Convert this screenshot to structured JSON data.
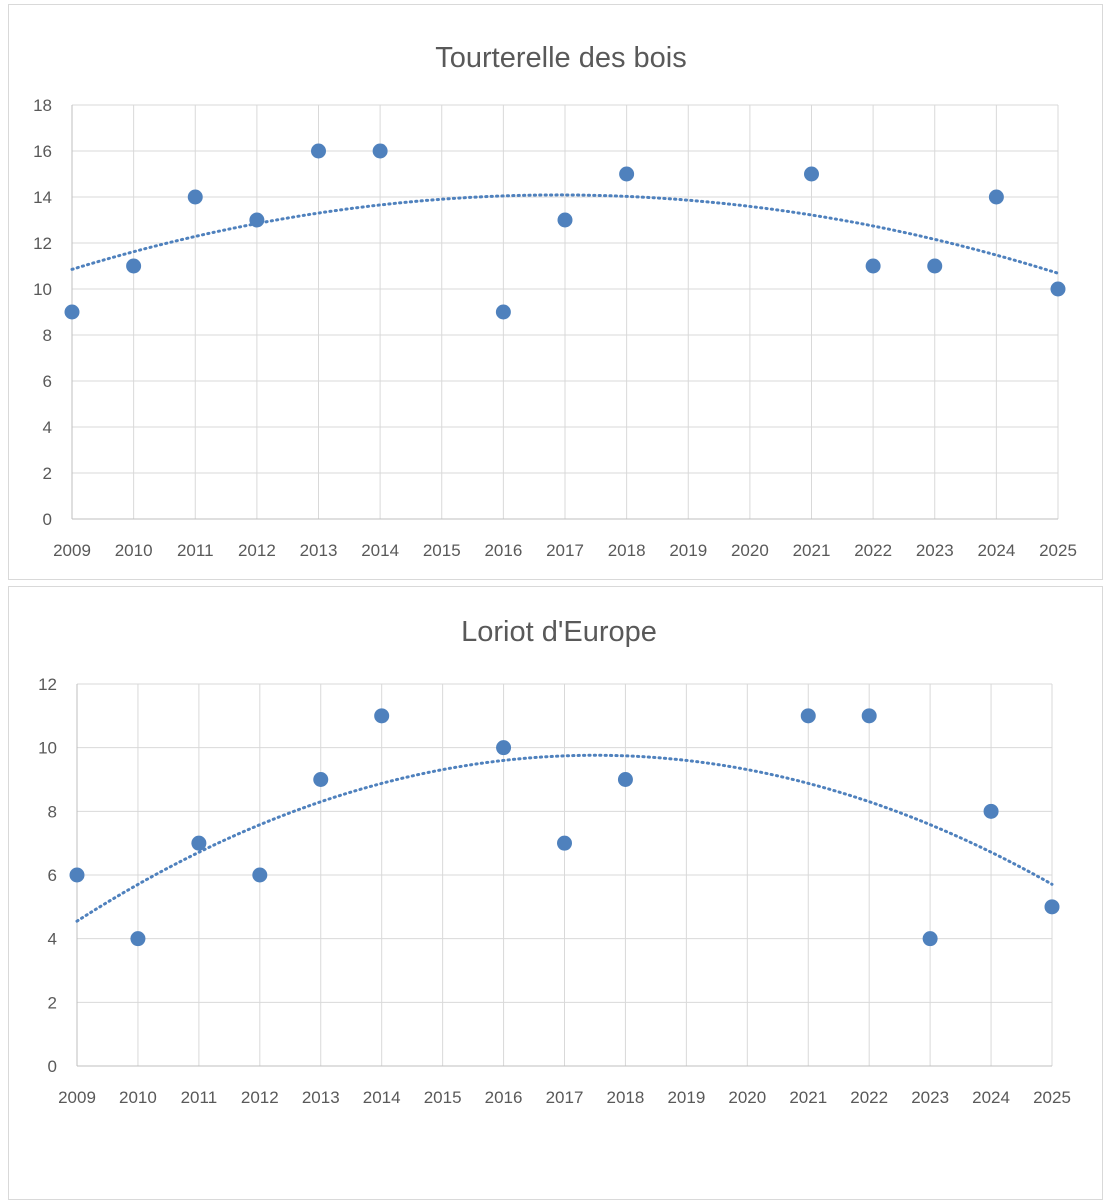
{
  "chart_data": [
    {
      "type": "scatter",
      "title": "Tourterelle des bois",
      "xlabel": "",
      "ylabel": "",
      "x_ticks": [
        "2009",
        "2010",
        "2011",
        "2012",
        "2013",
        "2014",
        "2015",
        "2016",
        "2017",
        "2018",
        "2019",
        "2020",
        "2021",
        "2022",
        "2023",
        "2024",
        "2025"
      ],
      "y_ticks": [
        0,
        2,
        4,
        6,
        8,
        10,
        12,
        14,
        16,
        18
      ],
      "ylim": [
        0,
        18
      ],
      "grid": true,
      "legend": "none",
      "color": "#4f81bd",
      "trendline": "polynomial order 2, dotted",
      "series": [
        {
          "x": [
            "2009",
            "2010",
            "2011",
            "2012",
            "2013",
            "2014",
            "2016",
            "2017",
            "2018",
            "2021",
            "2022",
            "2023",
            "2024",
            "2025"
          ],
          "values": [
            9,
            11,
            14,
            13,
            16,
            16,
            9,
            13,
            15,
            15,
            11,
            11,
            14,
            10
          ]
        }
      ]
    },
    {
      "type": "scatter",
      "title": "Loriot d'Europe",
      "xlabel": "",
      "ylabel": "",
      "x_ticks": [
        "2009",
        "2010",
        "2011",
        "2012",
        "2013",
        "2014",
        "2015",
        "2016",
        "2017",
        "2018",
        "2019",
        "2020",
        "2021",
        "2022",
        "2023",
        "2024",
        "2025"
      ],
      "y_ticks": [
        0,
        2,
        4,
        6,
        8,
        10,
        12
      ],
      "ylim": [
        0,
        12
      ],
      "grid": true,
      "legend": "none",
      "color": "#4f81bd",
      "trendline": "polynomial order 2, dotted",
      "series": [
        {
          "x": [
            "2009",
            "2010",
            "2011",
            "2012",
            "2013",
            "2014",
            "2016",
            "2017",
            "2018",
            "2021",
            "2022",
            "2023",
            "2024",
            "2025"
          ],
          "values": [
            6,
            4,
            7,
            6,
            9,
            11,
            10,
            7,
            9,
            11,
            11,
            4,
            8,
            5
          ]
        }
      ]
    }
  ]
}
